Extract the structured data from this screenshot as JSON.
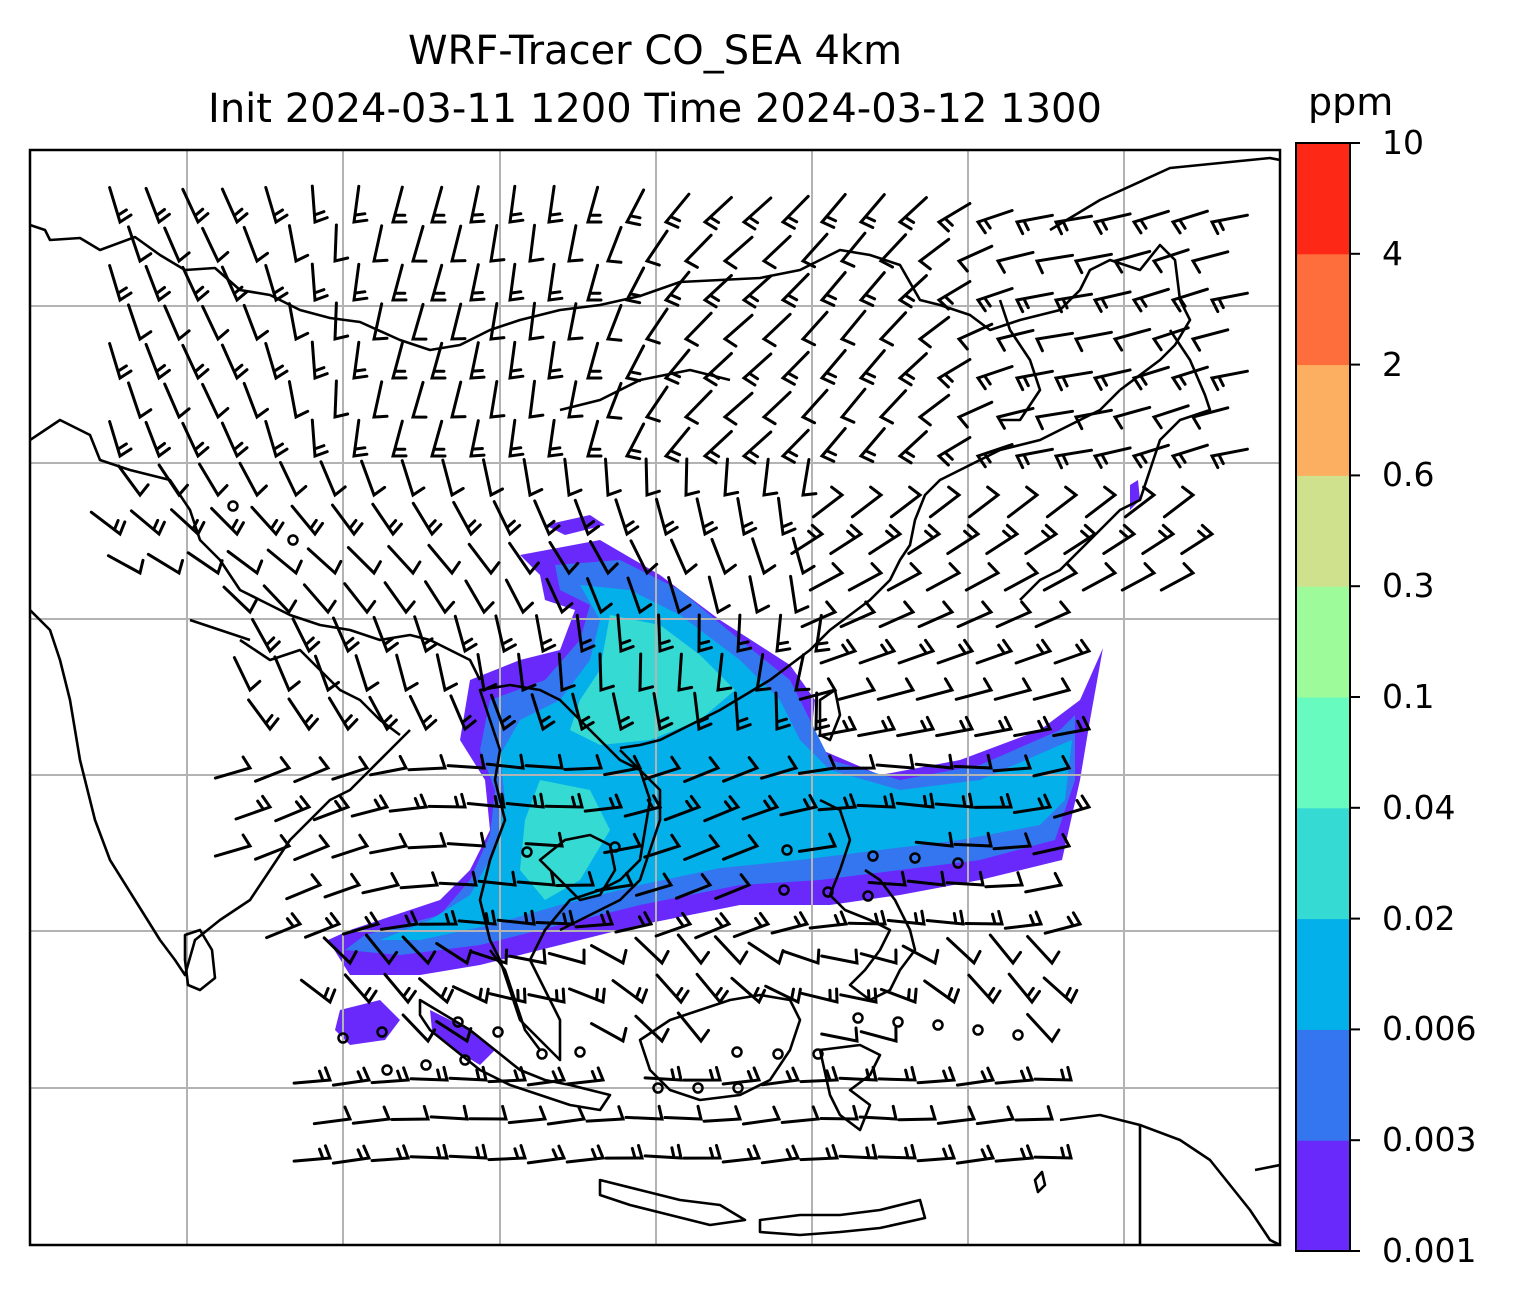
{
  "title": {
    "line1": "WRF-Tracer CO_SEA 4km",
    "line2": "Init 2024-03-11 1200 Time 2024-03-12 1300"
  },
  "colorbar": {
    "unit": "ppm",
    "ticks": [
      "0.001",
      "0.003",
      "0.006",
      "0.02",
      "0.04",
      "0.1",
      "0.3",
      "0.6",
      "2",
      "4",
      "10"
    ],
    "colors": [
      "#6a29fb",
      "#3476f0",
      "#03b0ea",
      "#35dbd3",
      "#68fbbf",
      "#9efb9a",
      "#cfe18c",
      "#fdaf61",
      "#fe6d3c",
      "#fe2816"
    ]
  },
  "map": {
    "region": "East and Southeast Asia",
    "layers": [
      "CO tracer concentration (filled contours)",
      "wind barbs",
      "coastlines and borders",
      "gridlines"
    ],
    "plume_color_levels": [
      "#6a29fb",
      "#3476f0",
      "#03b0ea",
      "#35dbd3"
    ],
    "line_color": "#000000",
    "grid_color": "#b3b3b3"
  }
}
